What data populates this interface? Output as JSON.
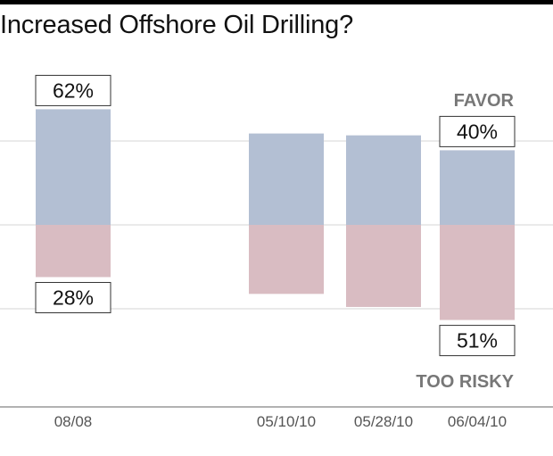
{
  "chart_data": {
    "type": "bar",
    "stacking": "diverging",
    "title": "Increased Offshore Oil Drilling?",
    "categories": [
      "08/08",
      "05/10/10",
      "05/28/10",
      "06/04/10"
    ],
    "series": [
      {
        "name": "FAVOR",
        "values": [
          62,
          49,
          48,
          40
        ],
        "color": "#b3bfd3"
      },
      {
        "name": "TOO RISKY",
        "values": [
          28,
          37,
          44,
          51
        ],
        "color": "#d9bcc2"
      }
    ],
    "data_labels": [
      {
        "category": "08/08",
        "series": "FAVOR",
        "text": "62%"
      },
      {
        "category": "08/08",
        "series": "TOO RISKY",
        "text": "28%"
      },
      {
        "category": "06/04/10",
        "series": "FAVOR",
        "text": "40%"
      },
      {
        "category": "06/04/10",
        "series": "TOO RISKY",
        "text": "51%"
      }
    ],
    "grid": true
  }
}
